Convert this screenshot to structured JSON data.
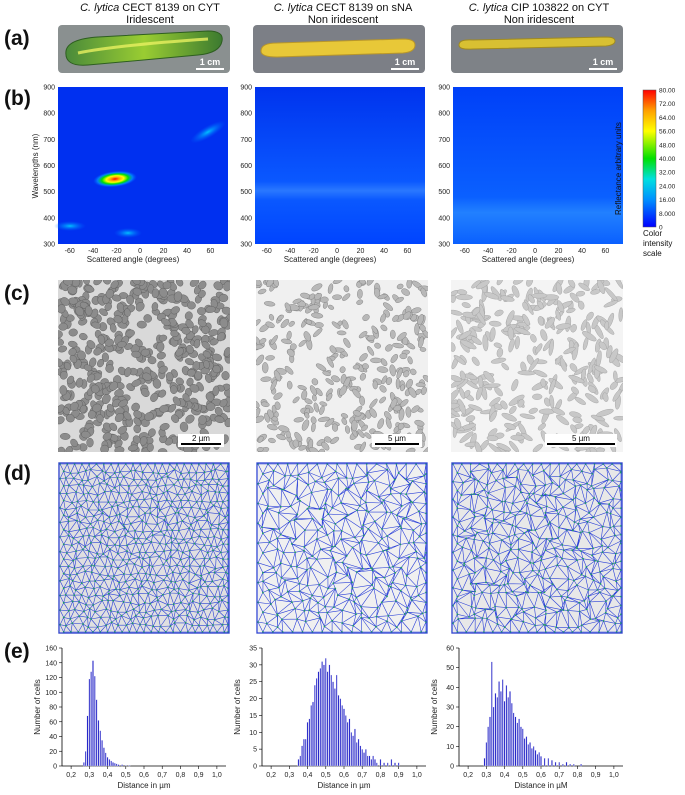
{
  "panels": {
    "a": "(a)",
    "b": "(b)",
    "c": "(c)",
    "d": "(d)",
    "e": "(e)"
  },
  "columns": [
    {
      "species": "C. lytica",
      "strain": "CECT 8139",
      "medium": "on CYT",
      "phenotype": "Iridescent",
      "photo_scale": "1 cm",
      "sem_scale": "2 µm"
    },
    {
      "species": "C. lytica",
      "strain": "CECT 8139",
      "medium": "on sNA",
      "phenotype": "Non iridescent",
      "photo_scale": "1 cm",
      "sem_scale": "5 µm"
    },
    {
      "species": "C. lytica",
      "strain": "CIP 103822",
      "medium": "on CYT",
      "phenotype": "Non iridescent",
      "photo_scale": "1 cm",
      "sem_scale": "5 µm"
    }
  ],
  "heatmap": {
    "ylabel": "Wavelengths (nm)",
    "xlabel": "Scattered angle (degrees)",
    "yticks": [
      "900",
      "800",
      "700",
      "600",
      "500",
      "400",
      "300"
    ],
    "xticks": [
      "-60",
      "-40",
      "-20",
      "0",
      "20",
      "40",
      "60"
    ]
  },
  "colorbar": {
    "title": "Reflectance arbitrary units",
    "ticks": [
      "80.00",
      "72.00",
      "64.00",
      "56.00",
      "48.00",
      "40.00",
      "32.00",
      "24.00",
      "16.00",
      "8.000",
      "0"
    ],
    "caption_1": "Color",
    "caption_2": "intensity",
    "caption_3": "scale",
    "colors": [
      "#ff0000",
      "#ffa000",
      "#ffff00",
      "#00e000",
      "#00e0e0",
      "#0090ff",
      "#0000ff"
    ]
  },
  "chart_data": [
    {
      "type": "bar",
      "title": "",
      "xlabel": "Distance in µm",
      "ylabel": "Number of cells",
      "xlim": [
        0.15,
        1.05
      ],
      "ylim": [
        0,
        160
      ],
      "yticks": [
        0,
        20,
        40,
        60,
        80,
        100,
        120,
        140,
        160
      ],
      "xticks": [
        "0,2",
        "0,3",
        "0,4",
        "0,5",
        "0,6",
        "0,7",
        "0,8",
        "0,9",
        "1,0"
      ],
      "x": [
        0.27,
        0.28,
        0.29,
        0.3,
        0.31,
        0.32,
        0.33,
        0.34,
        0.35,
        0.36,
        0.37,
        0.38,
        0.39,
        0.4,
        0.41,
        0.42,
        0.43,
        0.44,
        0.45,
        0.46,
        0.48,
        0.5,
        0.52
      ],
      "values": [
        5,
        20,
        68,
        118,
        128,
        143,
        122,
        90,
        62,
        48,
        35,
        25,
        18,
        12,
        9,
        7,
        5,
        4,
        3,
        2,
        2,
        1,
        1
      ]
    },
    {
      "type": "bar",
      "title": "",
      "xlabel": "Distance in µm",
      "ylabel": "Number of cells",
      "xlim": [
        0.15,
        1.05
      ],
      "ylim": [
        0,
        35
      ],
      "yticks": [
        0,
        5,
        10,
        15,
        20,
        25,
        30,
        35
      ],
      "xticks": [
        "0,2",
        "0,3",
        "0,4",
        "0,5",
        "0,6",
        "0,7",
        "0,8",
        "0,9",
        "1,0"
      ],
      "x": [
        0.35,
        0.36,
        0.37,
        0.38,
        0.39,
        0.4,
        0.41,
        0.42,
        0.43,
        0.44,
        0.45,
        0.46,
        0.47,
        0.48,
        0.49,
        0.5,
        0.51,
        0.52,
        0.53,
        0.54,
        0.55,
        0.56,
        0.57,
        0.58,
        0.59,
        0.6,
        0.61,
        0.62,
        0.63,
        0.64,
        0.65,
        0.66,
        0.67,
        0.68,
        0.69,
        0.7,
        0.71,
        0.72,
        0.73,
        0.74,
        0.75,
        0.76,
        0.77,
        0.78,
        0.8,
        0.82,
        0.84,
        0.86,
        0.88,
        0.9
      ],
      "values": [
        2,
        3,
        6,
        8,
        8,
        13,
        14,
        18,
        19,
        24,
        26,
        28,
        29,
        31,
        30,
        32,
        28,
        30,
        27,
        25,
        23,
        27,
        21,
        20,
        18,
        17,
        15,
        13,
        14,
        10,
        9,
        11,
        7,
        8,
        6,
        5,
        4,
        5,
        3,
        3,
        2,
        3,
        2,
        1,
        2,
        1,
        1,
        2,
        1,
        1
      ]
    },
    {
      "type": "bar",
      "title": "",
      "xlabel": "Distance in µM",
      "ylabel": "Number of cells",
      "xlim": [
        0.15,
        1.05
      ],
      "ylim": [
        0,
        60
      ],
      "yticks": [
        0,
        10,
        20,
        30,
        40,
        50,
        60
      ],
      "xticks": [
        "0,2",
        "0,3",
        "0,4",
        "0,5",
        "0,6",
        "0,7",
        "0,8",
        "0,9",
        "1,0"
      ],
      "x": [
        0.29,
        0.3,
        0.31,
        0.32,
        0.33,
        0.34,
        0.35,
        0.36,
        0.37,
        0.38,
        0.39,
        0.4,
        0.41,
        0.42,
        0.43,
        0.44,
        0.45,
        0.46,
        0.47,
        0.48,
        0.49,
        0.5,
        0.51,
        0.52,
        0.53,
        0.54,
        0.55,
        0.56,
        0.57,
        0.58,
        0.59,
        0.6,
        0.62,
        0.64,
        0.66,
        0.68,
        0.7,
        0.72,
        0.74,
        0.76,
        0.78,
        0.82
      ],
      "values": [
        4,
        12,
        20,
        25,
        53,
        30,
        37,
        35,
        43,
        38,
        44,
        33,
        41,
        35,
        38,
        32,
        27,
        25,
        22,
        24,
        20,
        19,
        14,
        15,
        11,
        12,
        9,
        10,
        8,
        6,
        7,
        5,
        4,
        4,
        3,
        2,
        2,
        1,
        2,
        1,
        1,
        1
      ]
    }
  ]
}
